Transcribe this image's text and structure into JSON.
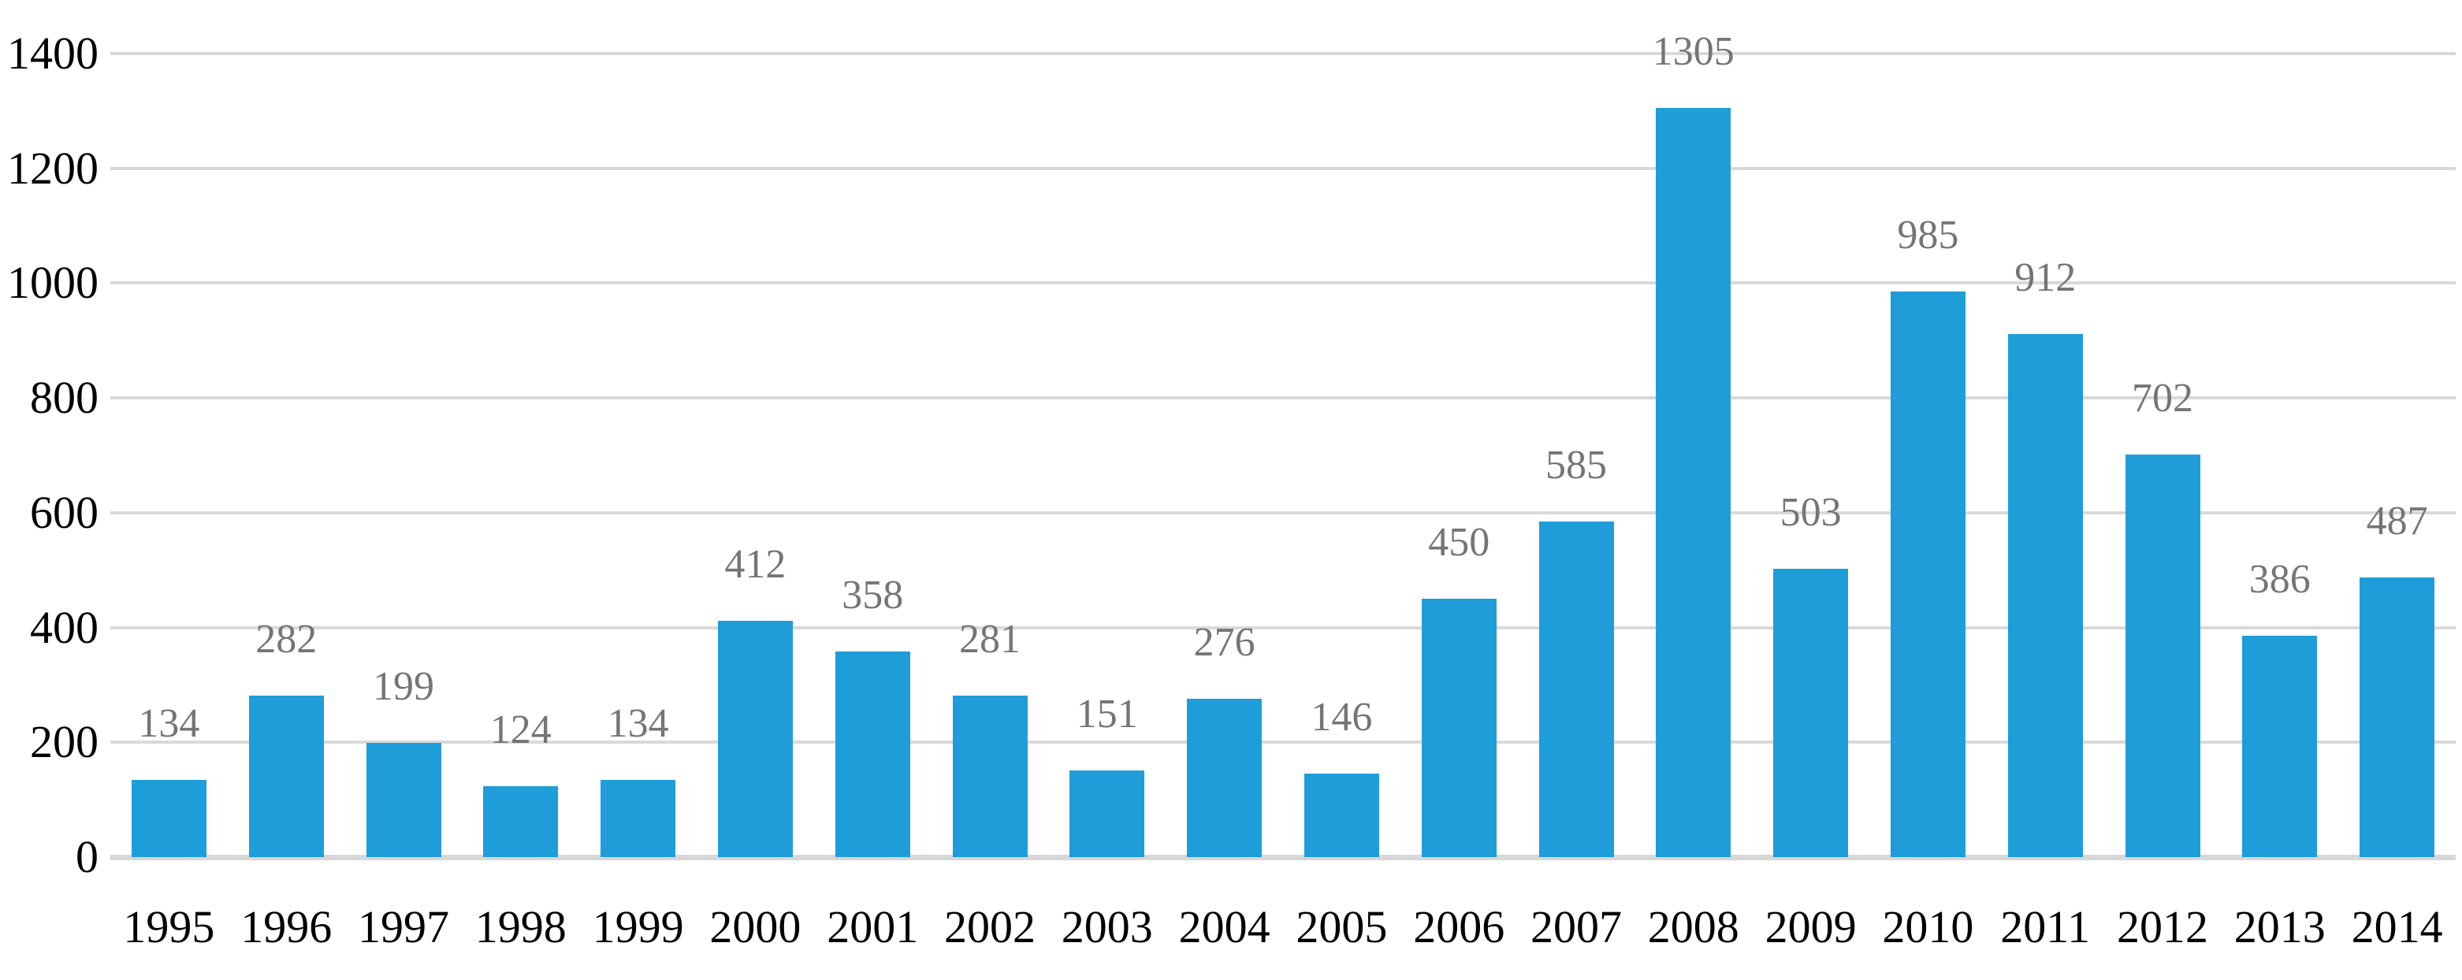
{
  "chart_data": {
    "type": "bar",
    "categories": [
      "1995",
      "1996",
      "1997",
      "1998",
      "1999",
      "2000",
      "2001",
      "2002",
      "2003",
      "2004",
      "2005",
      "2006",
      "2007",
      "2008",
      "2009",
      "2010",
      "2011",
      "2012",
      "2013",
      "2014"
    ],
    "values": [
      134,
      282,
      199,
      124,
      134,
      412,
      358,
      281,
      151,
      276,
      146,
      450,
      585,
      1305,
      503,
      985,
      912,
      702,
      386,
      487
    ],
    "title": "",
    "xlabel": "",
    "ylabel": "",
    "ylim": [
      0,
      1400
    ],
    "yticks": [
      0,
      200,
      400,
      600,
      800,
      1000,
      1200,
      1400
    ],
    "grid": true,
    "legend": false,
    "data_labels": true,
    "colors": {
      "bar": "#1f9dd9",
      "gridline": "#d9d9d9",
      "baseline": "#d7d7d7",
      "data_label": "#757575",
      "axis_label": "#000000"
    }
  }
}
